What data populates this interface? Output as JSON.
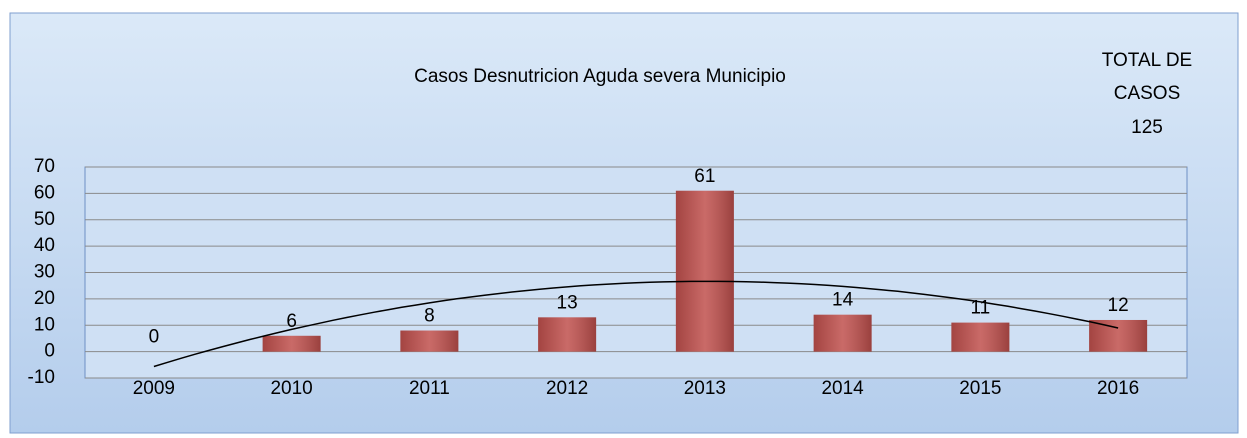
{
  "chart_data": {
    "type": "bar",
    "title": "Casos Desnutricion Aguda  severa  Municipio",
    "annotation": [
      "TOTAL DE",
      "CASOS",
      "125"
    ],
    "categories": [
      "2009",
      "2010",
      "2011",
      "2012",
      "2013",
      "2014",
      "2015",
      "2016"
    ],
    "values": [
      0,
      6,
      8,
      13,
      61,
      14,
      11,
      12
    ],
    "color": "#c0504d",
    "ylim": [
      -10,
      70
    ],
    "yticks": [
      -10,
      0,
      10,
      20,
      30,
      40,
      50,
      60,
      70
    ],
    "grid": true,
    "trendline": "polynomial"
  }
}
